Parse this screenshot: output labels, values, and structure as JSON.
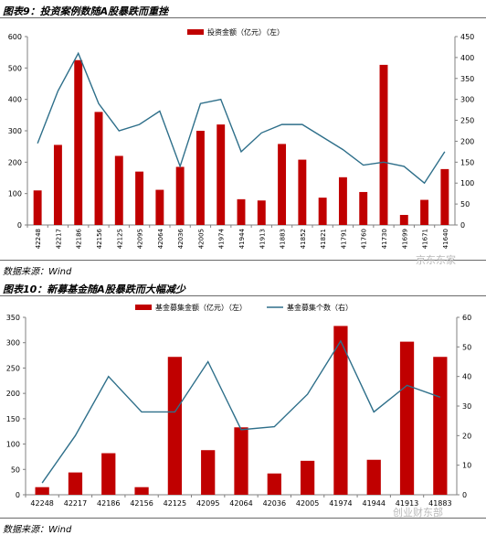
{
  "figure1": {
    "title": "图表9：投资案例数随A股暴跌而重挫",
    "source": "数据来源：Wind",
    "watermark": "京东东家"
  },
  "figure2": {
    "title": "图表10：新募基金随A股暴跌而大幅减少",
    "source": "数据来源：Wind",
    "watermark": "创业财东部"
  },
  "colors": {
    "bar": "#c00000",
    "line": "#2e6f8a",
    "axis": "#808080"
  },
  "chart_data": [
    {
      "type": "bar+line",
      "categories": [
        "42248",
        "42217",
        "42186",
        "42156",
        "42125",
        "42095",
        "42064",
        "42036",
        "42005",
        "41974",
        "41944",
        "41913",
        "41883",
        "41852",
        "41821",
        "41791",
        "41760",
        "41730",
        "41699",
        "41671",
        "41640"
      ],
      "series": [
        {
          "name": "投资金额（亿元）（左）",
          "type": "bar",
          "axis": "left",
          "values": [
            110,
            255,
            525,
            360,
            220,
            170,
            112,
            185,
            300,
            320,
            82,
            78,
            258,
            208,
            87,
            152,
            105,
            510,
            32,
            80,
            178
          ]
        },
        {
          "type": "line",
          "axis": "right",
          "values": [
            195,
            320,
            410,
            290,
            225,
            240,
            272,
            140,
            290,
            300,
            175,
            220,
            240,
            240,
            210,
            180,
            143,
            150,
            140,
            100,
            175
          ]
        }
      ],
      "y_left": {
        "ticks": [
          "0",
          "100",
          "200",
          "300",
          "400",
          "500",
          "600"
        ],
        "range": [
          0,
          600
        ]
      },
      "y_right": {
        "ticks": [
          "0",
          "50",
          "100",
          "150",
          "200",
          "250",
          "300",
          "350",
          "400",
          "450"
        ],
        "range": [
          0,
          450
        ]
      },
      "grid": false,
      "legend": "top-center"
    },
    {
      "type": "bar+line",
      "categories": [
        "42248",
        "42217",
        "42186",
        "42156",
        "42125",
        "42095",
        "42064",
        "42036",
        "42005",
        "41974",
        "41944",
        "41913",
        "41883"
      ],
      "series": [
        {
          "name": "基金募集金额（亿元）（左）",
          "type": "bar",
          "axis": "left",
          "values": [
            15,
            44,
            82,
            15,
            272,
            88,
            133,
            42,
            67,
            333,
            69,
            302,
            272
          ]
        },
        {
          "name": "基金募集个数（右）",
          "type": "line",
          "axis": "right",
          "values": [
            4,
            20,
            40,
            28,
            28,
            45,
            22,
            23,
            34,
            52,
            28,
            37,
            33
          ]
        }
      ],
      "y_left": {
        "ticks": [
          "0",
          "50",
          "100",
          "150",
          "200",
          "250",
          "300",
          "350"
        ],
        "range": [
          0,
          350
        ]
      },
      "y_right": {
        "ticks": [
          "0",
          "10",
          "20",
          "30",
          "40",
          "50",
          "60"
        ],
        "range": [
          0,
          60
        ]
      },
      "grid": false,
      "legend": "top-center"
    }
  ]
}
